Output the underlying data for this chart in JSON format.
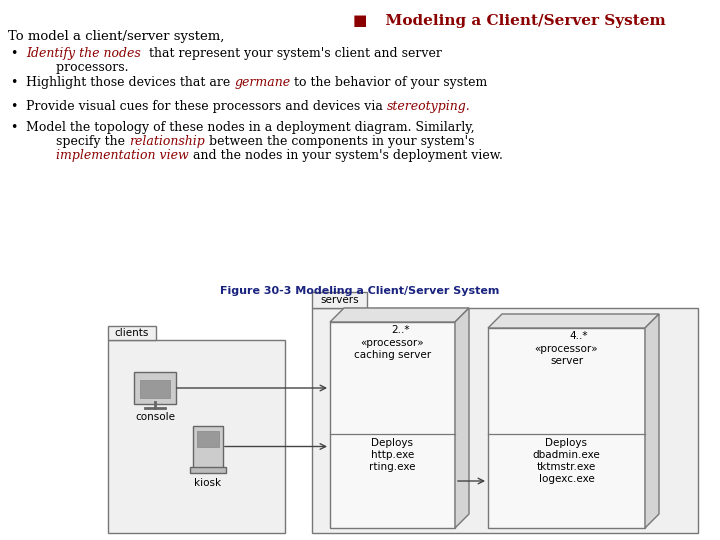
{
  "title_bullet": "■",
  "title_text": "  Modeling a Client/Server System",
  "title_color": "#8B0000",
  "bg_color": "#ffffff",
  "fig_width": 7.2,
  "fig_height": 5.4,
  "dpi": 100,
  "figure_caption": "Figure 30-3 Modeling a Client/Server System",
  "figure_caption_color": "#1a237e",
  "diagram": {
    "servers_tab_label": "servers",
    "clients_tab_label": "clients",
    "cache_node": {
      "multiplicity": "2..*",
      "stereotype": "«processor»",
      "name": "caching server",
      "deploys_label": "Deploys",
      "artifacts": [
        "http.exe",
        "rting.exe"
      ]
    },
    "server_node": {
      "multiplicity": "4..*",
      "stereotype": "«processor»",
      "name": "server",
      "deploys_label": "Deploys",
      "artifacts": [
        "dbadmin.exe",
        "tktmstr.exe",
        "logexc.exe"
      ]
    },
    "console_label": "console",
    "kiosk_label": "kiosk"
  }
}
